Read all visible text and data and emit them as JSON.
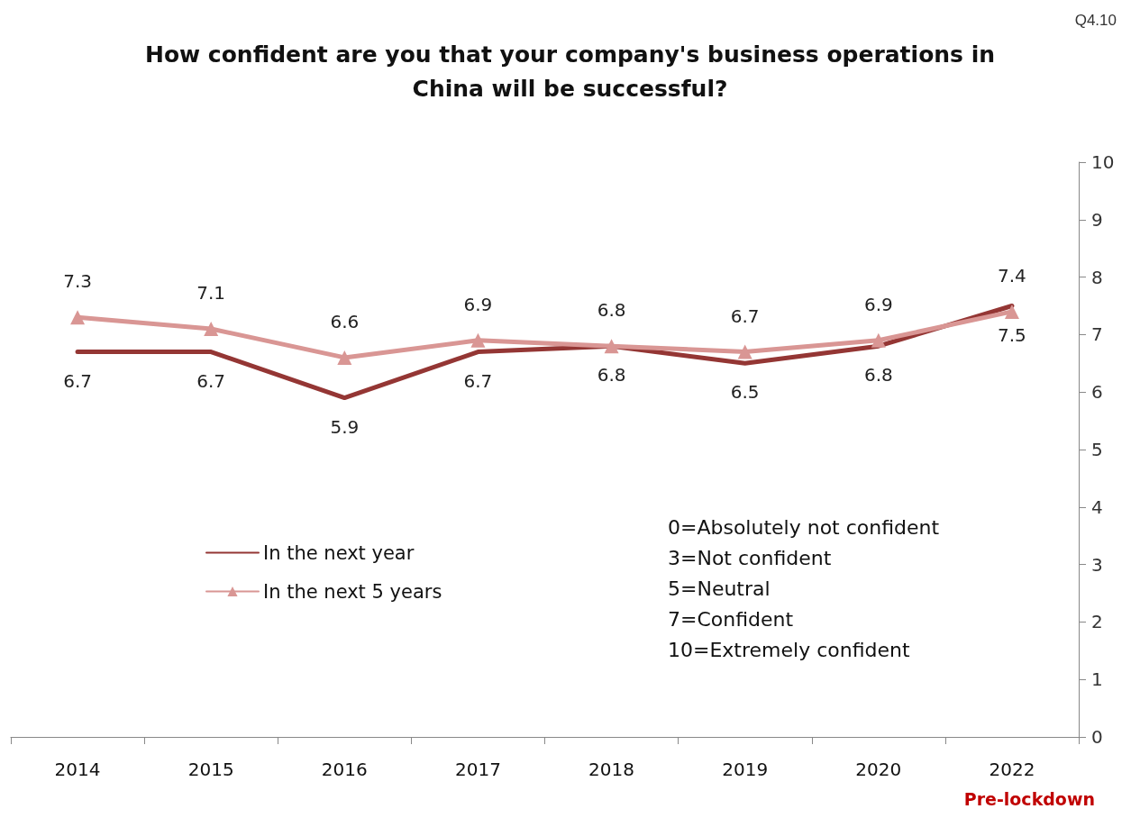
{
  "chart_data": {
    "type": "line",
    "title": "How confident are you that your company's business operations in\nChina will be successful?",
    "categories": [
      "2014",
      "2015",
      "2016",
      "2017",
      "2018",
      "2019",
      "2020",
      "2022"
    ],
    "series": [
      {
        "name": "In the next year",
        "color": "#943634",
        "marker": "none",
        "values": [
          6.7,
          6.7,
          5.9,
          6.7,
          6.8,
          6.5,
          6.8,
          7.5
        ]
      },
      {
        "name": "In the next 5 years",
        "color": "#d99694",
        "marker": "triangle",
        "values": [
          7.3,
          7.1,
          6.6,
          6.9,
          6.8,
          6.7,
          6.9,
          7.4
        ]
      }
    ],
    "ylim": [
      0,
      10
    ],
    "yticks": [
      0,
      1,
      2,
      3,
      4,
      5,
      6,
      7,
      8,
      9,
      10
    ],
    "grid": false,
    "legend": "left",
    "data_labels": true,
    "annotations": [
      "Q4.10",
      "0=Absolutely not confident\n3=Not confident\n5=Neutral\n7=Confident\n10=Extremely confident",
      "Pre-lockdown"
    ]
  }
}
